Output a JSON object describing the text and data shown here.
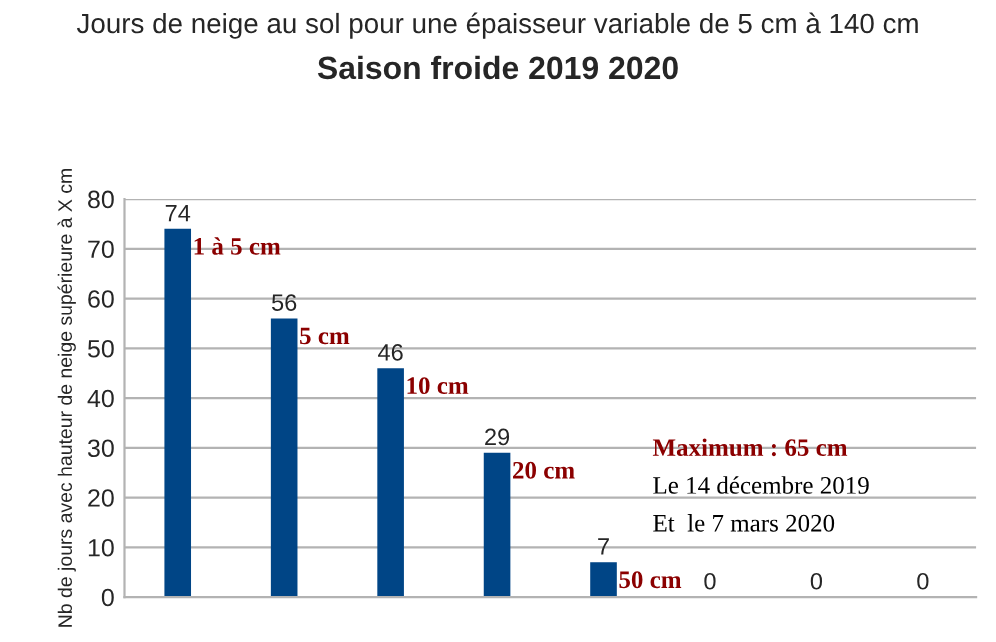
{
  "chart_data": {
    "type": "bar",
    "title": "Jours de neige au sol pour une épaisseur variable de 5 cm à 140 cm",
    "subtitle": "Saison froide 2019 2020",
    "ylabel": "Nb de jours avec hauteur de neige supérieure à X cm",
    "categories": [
      null,
      null,
      null,
      null,
      null,
      null,
      null,
      null
    ],
    "values": [
      74,
      56,
      46,
      29,
      7,
      0,
      0,
      0
    ],
    "color": "#004586",
    "ylim": [
      0,
      80
    ],
    "yticks": [
      0,
      10,
      20,
      30,
      40,
      50,
      60,
      70,
      80
    ],
    "grid": "y",
    "data_labels": true,
    "annotations": [
      "1 à 5 cm",
      "5 cm",
      "10 cm",
      "20 cm",
      "50 cm",
      "Maximum : 65 cm",
      "Le 14 décembre 2019",
      "Et  le 7 mars 2020"
    ]
  }
}
